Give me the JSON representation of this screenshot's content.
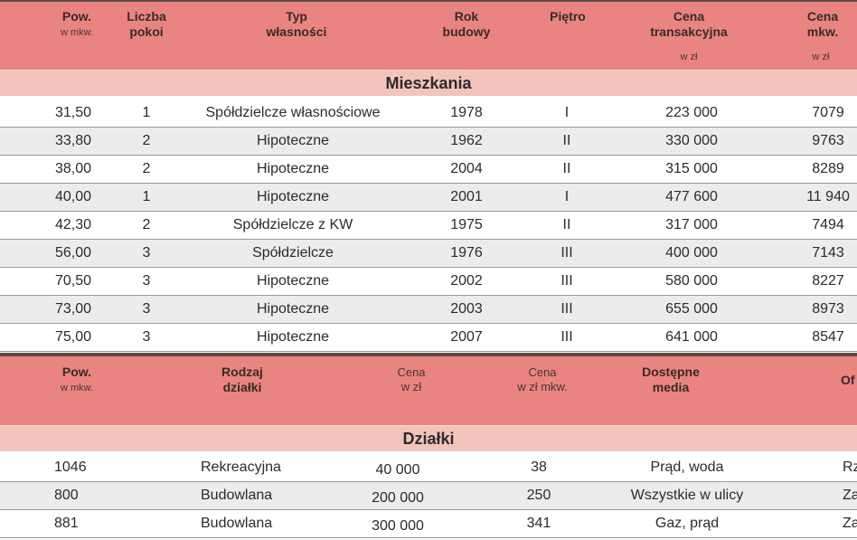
{
  "apartments": {
    "headers": {
      "pow": [
        "Pow.",
        "w mkw."
      ],
      "rooms": [
        "Liczba",
        "pokoi"
      ],
      "ownership": [
        "Typ",
        "własności"
      ],
      "year": [
        "Rok",
        "budowy"
      ],
      "floor": "Piętro",
      "price": [
        "Cena",
        "transakcyjna",
        "w zł"
      ],
      "price_m2": [
        "Cena",
        "mkw.",
        "w zł"
      ]
    },
    "section_title": "Mieszkania",
    "rows": [
      [
        "31,50",
        "1",
        "Spółdzielcze własnościowe",
        "1978",
        "I",
        "223 000",
        "7079"
      ],
      [
        "33,80",
        "2",
        "Hipoteczne",
        "1962",
        "II",
        "330 000",
        "9763"
      ],
      [
        "38,00",
        "2",
        "Hipoteczne",
        "2004",
        "II",
        "315 000",
        "8289"
      ],
      [
        "40,00",
        "1",
        "Hipoteczne",
        "2001",
        "I",
        "477 600",
        "11 940"
      ],
      [
        "42,30",
        "2",
        "Spółdzielcze z KW",
        "1975",
        "II",
        "317 000",
        "7494"
      ],
      [
        "56,00",
        "3",
        "Spółdzielcze",
        "1976",
        "III",
        "400 000",
        "7143"
      ],
      [
        "70,50",
        "3",
        "Hipoteczne",
        "2002",
        "III",
        "580 000",
        "8227"
      ],
      [
        "73,00",
        "3",
        "Hipoteczne",
        "2003",
        "III",
        "655 000",
        "8973"
      ],
      [
        "75,00",
        "3",
        "Hipoteczne",
        "2007",
        "III",
        "641 000",
        "8547"
      ]
    ]
  },
  "plots": {
    "headers": {
      "pow": [
        "Pow.",
        "w mkw."
      ],
      "type": [
        "Rodzaj",
        "działki"
      ],
      "price": [
        "Cena",
        "w zł"
      ],
      "price_m2": [
        "Cena",
        "w zł mkw."
      ],
      "media": [
        "Dostępne",
        "media"
      ],
      "extra": "Of"
    },
    "section_title": "Działki",
    "rows": [
      [
        "1046",
        "Rekreacyjna",
        "40 000",
        "38",
        "Prąd, woda",
        "Rz"
      ],
      [
        "800",
        "Budowlana",
        "200 000",
        "250",
        "Wszystkie w ulicy",
        "Za"
      ],
      [
        "881",
        "Budowlana",
        "300 000",
        "341",
        "Gaz, prąd",
        "Za"
      ]
    ]
  }
}
